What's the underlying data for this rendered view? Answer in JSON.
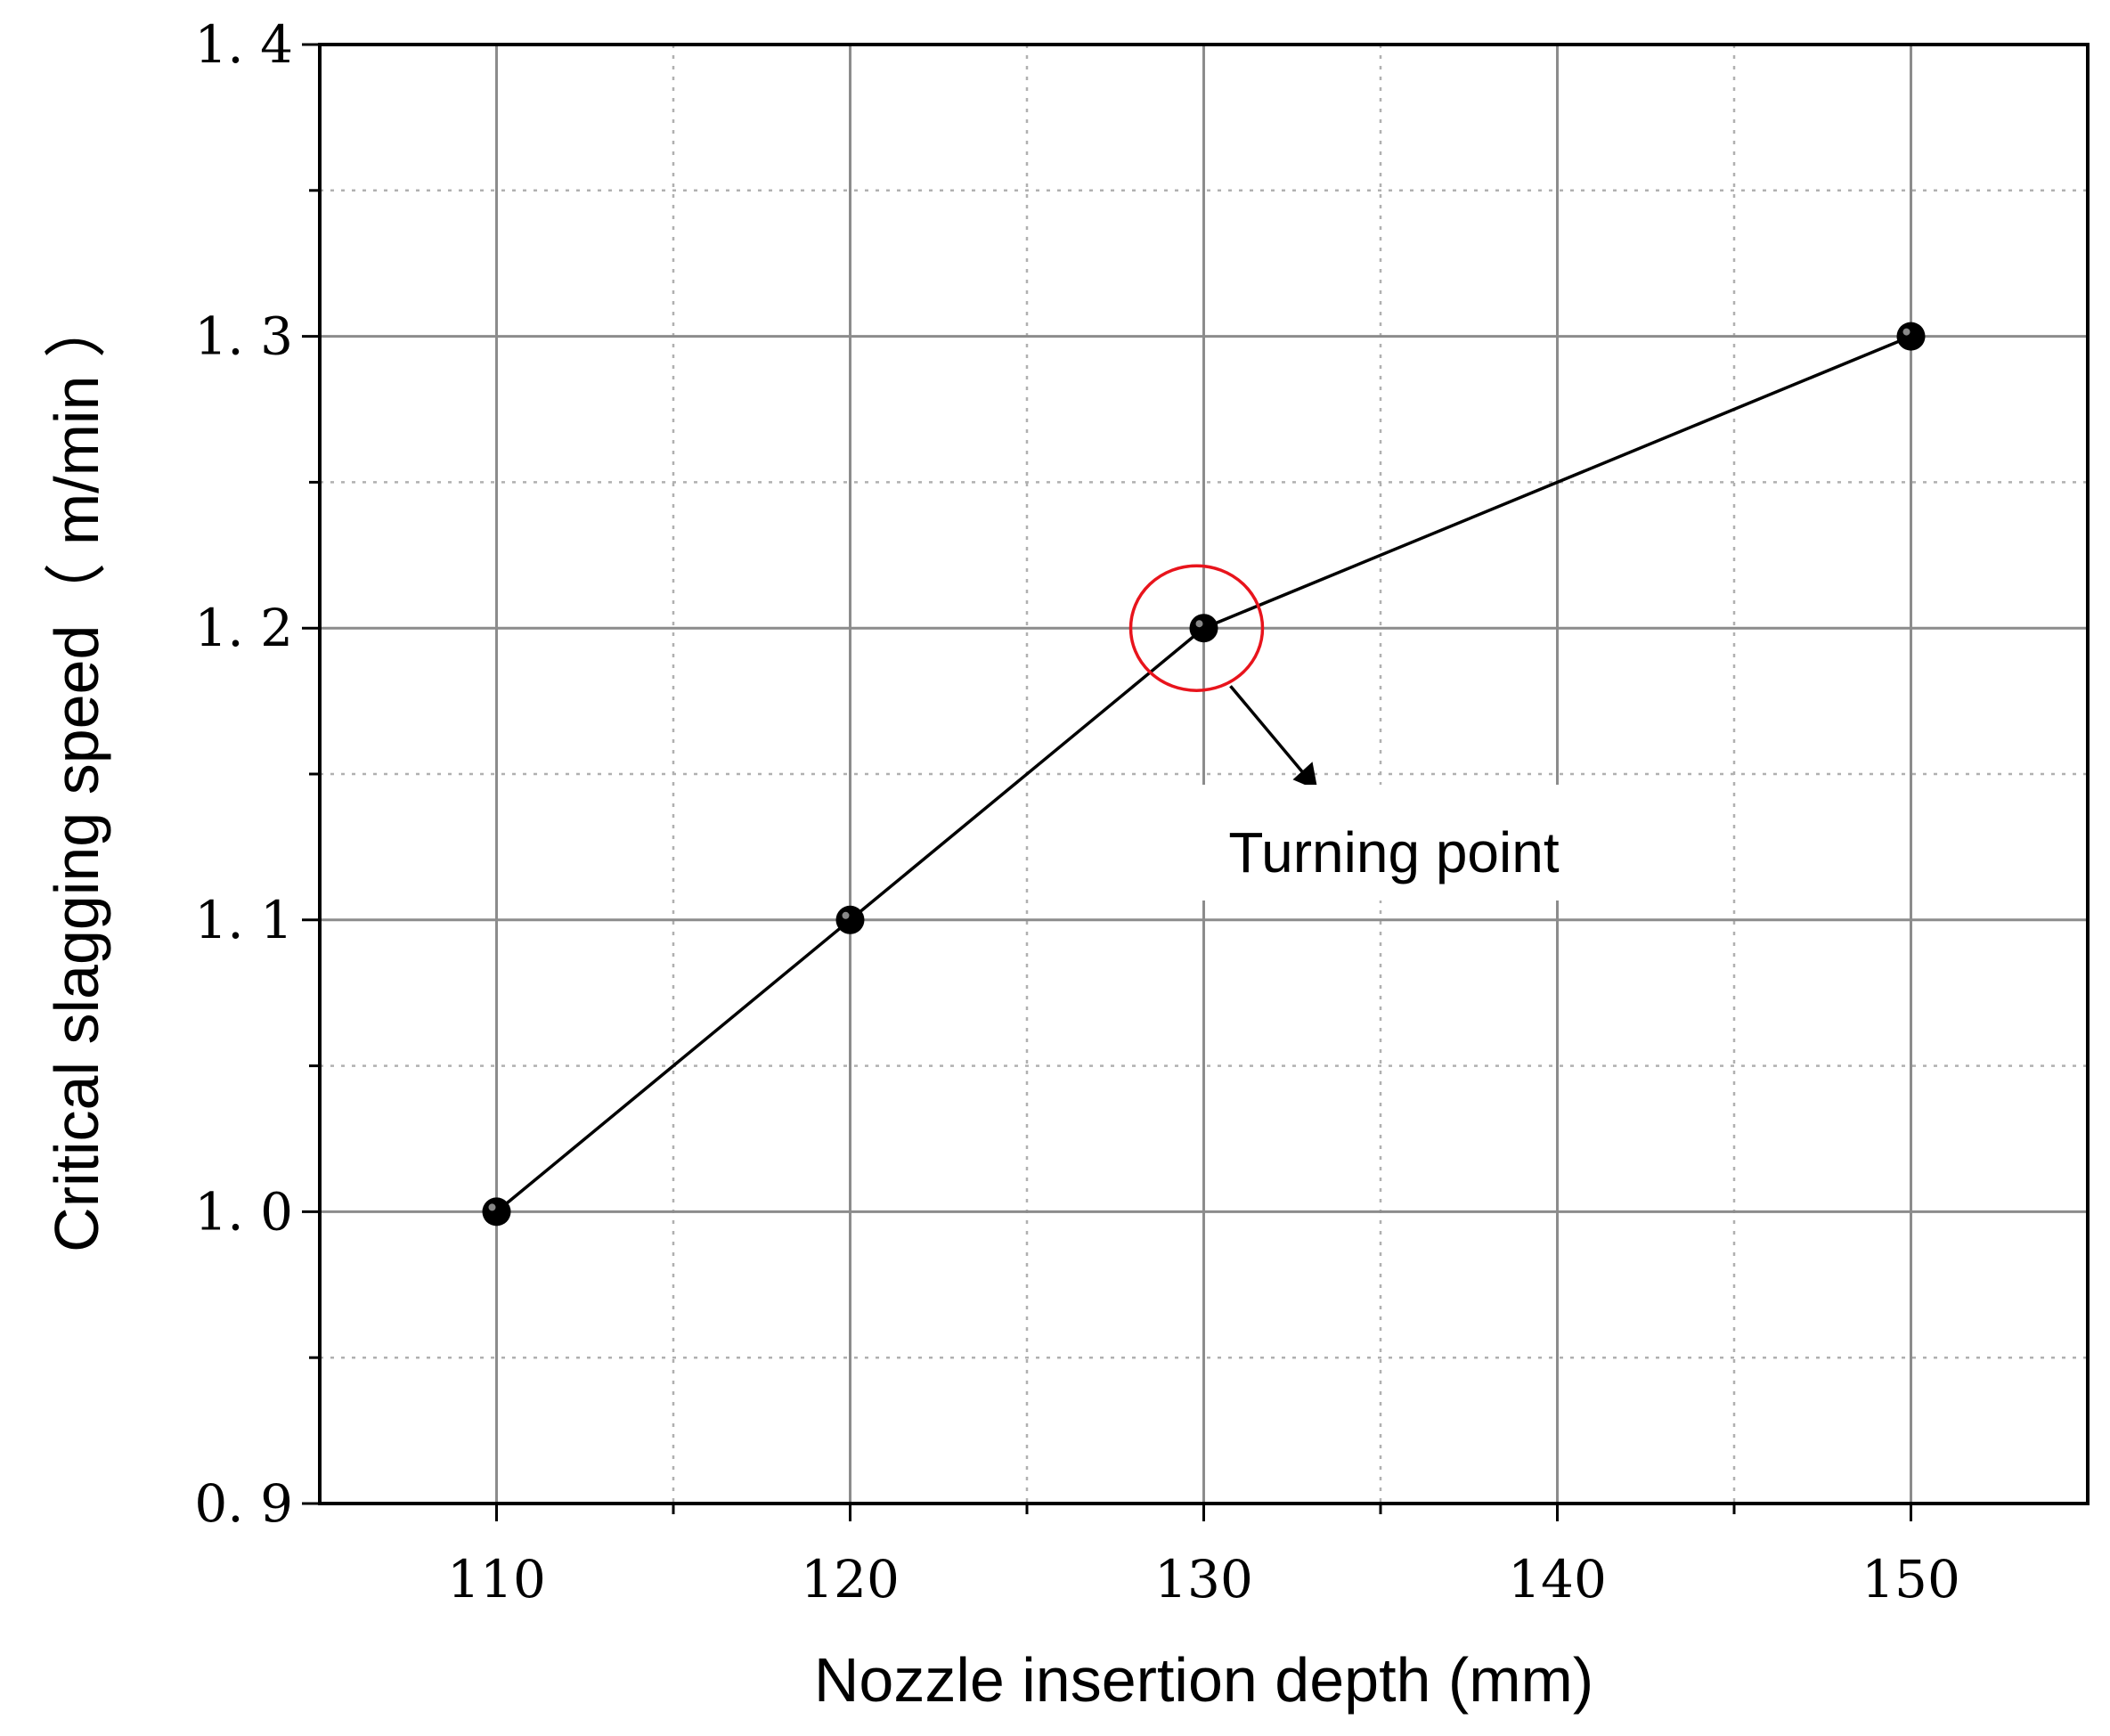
{
  "chart_data": {
    "type": "line",
    "title": "",
    "xlabel": "Nozzle insertion depth  (mm)",
    "ylabel": "Critical slagging speed（ m/min ）",
    "xlim": [
      105,
      155
    ],
    "ylim": [
      0.9,
      1.4
    ],
    "x_ticks": [
      110,
      120,
      130,
      140,
      150
    ],
    "x_tick_labels": [
      "110",
      "120",
      "130",
      "140",
      "150"
    ],
    "y_ticks": [
      0.9,
      1.0,
      1.1,
      1.2,
      1.3,
      1.4
    ],
    "y_tick_labels": [
      "0. 9",
      "1. 0",
      "1. 1",
      "1. 2",
      "1. 3",
      "1. 4"
    ],
    "grid": true,
    "series": [
      {
        "x": [
          110,
          120,
          130,
          150
        ],
        "y": [
          1.0,
          1.1,
          1.2,
          1.3
        ],
        "color": "#000000",
        "marker": "circle"
      }
    ],
    "annotations": [
      {
        "text": "Turning point",
        "point": [
          130,
          1.2
        ],
        "circle_color": "#e8141c"
      }
    ]
  }
}
